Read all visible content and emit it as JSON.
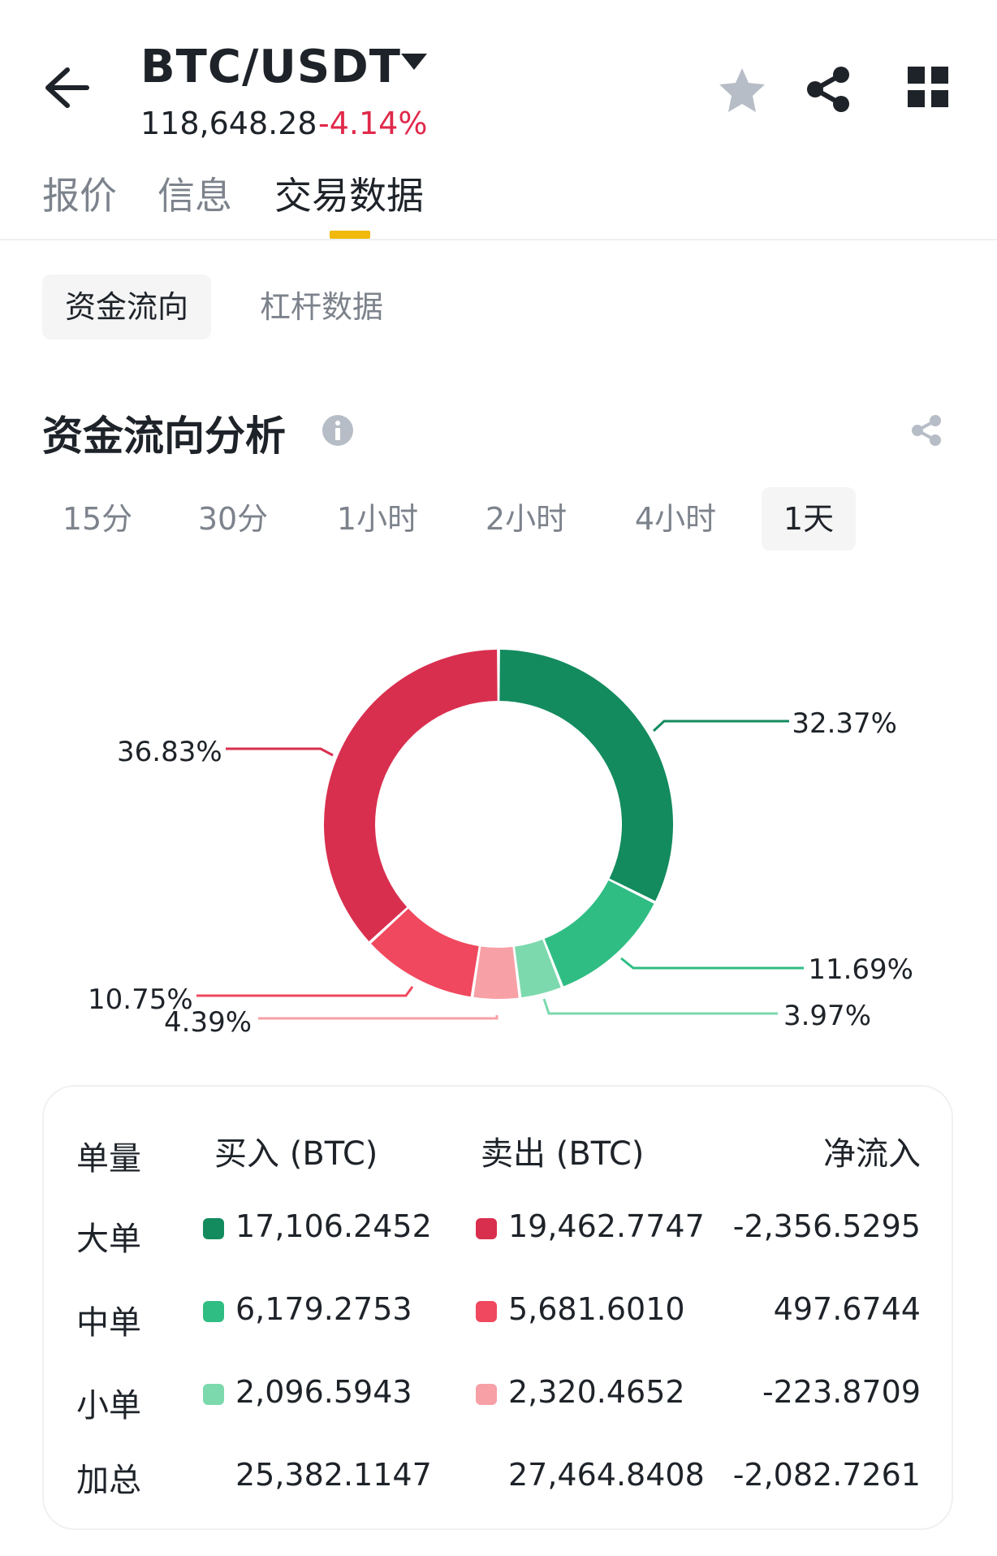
{
  "header": {
    "pair": "BTC/USDT",
    "price": "118,648.28",
    "change": "-4.14%"
  },
  "tabs": [
    "报价",
    "信息",
    "交易数据"
  ],
  "sub_tabs": [
    "资金流向",
    "杠杆数据"
  ],
  "section_title": "资金流向分析",
  "time_ranges": [
    "15分",
    "30分",
    "1小时",
    "2小时",
    "4小时",
    "1天"
  ],
  "selected_time_range": "1天",
  "colors": {
    "buy_large": "#138b5f",
    "buy_medium": "#2fbd83",
    "buy_small": "#7cd9ad",
    "sell_large": "#d92f4f",
    "sell_medium": "#f0485e",
    "sell_small": "#f7a0a6",
    "negative": "#e0294a",
    "accent": "#f0b90b"
  },
  "chart_data": {
    "type": "pie",
    "slices": [
      {
        "label": "32.37%",
        "value": 32.37,
        "color": "#138b5f"
      },
      {
        "label": "11.69%",
        "value": 11.69,
        "color": "#2fbd83"
      },
      {
        "label": "3.97%",
        "value": 3.97,
        "color": "#7cd9ad"
      },
      {
        "label": "4.39%",
        "value": 4.39,
        "color": "#f7a0a6"
      },
      {
        "label": "10.75%",
        "value": 10.75,
        "color": "#f0485e"
      },
      {
        "label": "36.83%",
        "value": 36.83,
        "color": "#d92f4f"
      }
    ]
  },
  "table": {
    "headers": [
      "单量",
      "买入 (BTC)",
      "卖出 (BTC)",
      "净流入"
    ],
    "rows": [
      {
        "label": "大单",
        "buy": "17,106.2452",
        "sell": "19,462.7747",
        "net": "-2,356.5295"
      },
      {
        "label": "中单",
        "buy": "6,179.2753",
        "sell": "5,681.6010",
        "net": "497.6744"
      },
      {
        "label": "小单",
        "buy": "2,096.5943",
        "sell": "2,320.4652",
        "net": "-223.8709"
      },
      {
        "label": "加总",
        "buy": "25,382.1147",
        "sell": "27,464.8408",
        "net": "-2,082.7261"
      }
    ]
  }
}
